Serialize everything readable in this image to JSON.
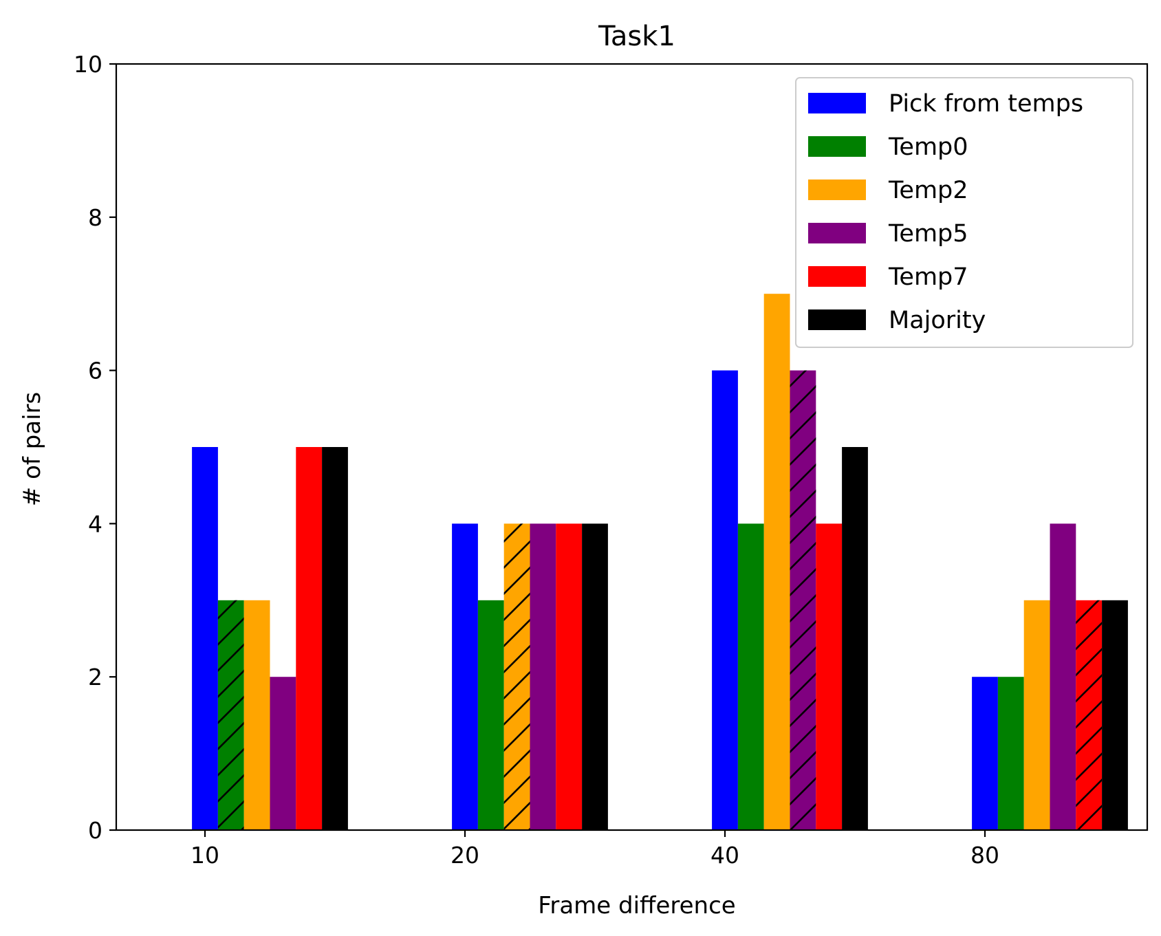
{
  "chart_data": {
    "type": "bar",
    "title": "Task1",
    "xlabel": "Frame difference",
    "ylabel": "# of pairs",
    "categories": [
      "10",
      "20",
      "40",
      "80"
    ],
    "yticks": [
      "0",
      "2",
      "4",
      "6",
      "8",
      "10"
    ],
    "ylim": [
      0,
      10
    ],
    "grid": false,
    "legend_position": "top-right",
    "series": [
      {
        "name": "Pick from temps",
        "color": "#0000ff",
        "values": [
          5,
          4,
          6,
          2
        ]
      },
      {
        "name": "Temp0",
        "color": "#008000",
        "values": [
          3,
          3,
          4,
          2
        ]
      },
      {
        "name": "Temp2",
        "color": "#ffa500",
        "values": [
          3,
          4,
          7,
          3
        ]
      },
      {
        "name": "Temp5",
        "color": "#800080",
        "values": [
          2,
          4,
          6,
          4
        ]
      },
      {
        "name": "Temp7",
        "color": "#ff0000",
        "values": [
          5,
          4,
          4,
          3
        ]
      },
      {
        "name": "Majority",
        "color": "#000000",
        "values": [
          5,
          4,
          5,
          3
        ]
      }
    ],
    "hatch_pattern": "diagonal-lines",
    "hatched_bars": [
      {
        "series": "Temp0",
        "category": "10"
      },
      {
        "series": "Temp2",
        "category": "20"
      },
      {
        "series": "Temp5",
        "category": "40"
      },
      {
        "series": "Temp7",
        "category": "80"
      }
    ]
  }
}
